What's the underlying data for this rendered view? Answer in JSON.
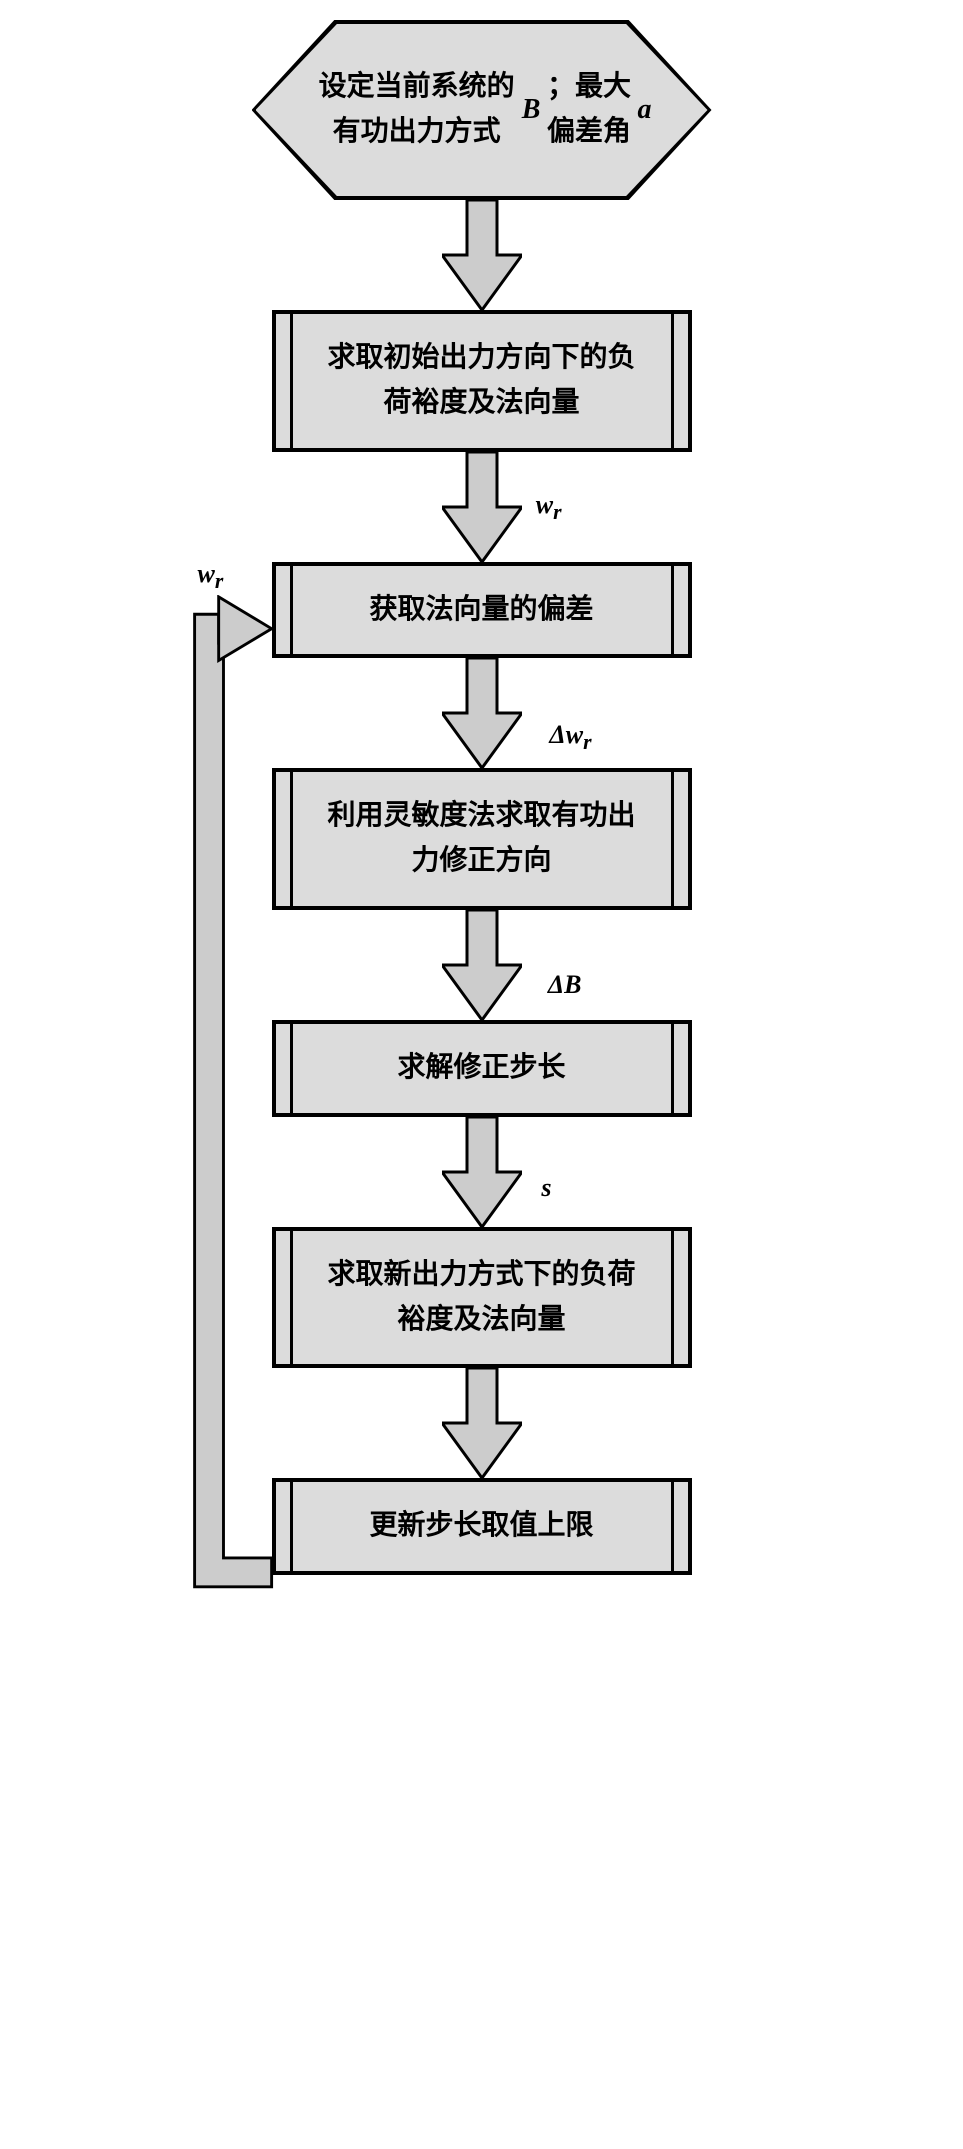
{
  "diagram": {
    "type": "flowchart",
    "background_color": "#ffffff",
    "node_fill": "#dcdcdc",
    "node_border": "#000000",
    "arrow_fill": "#cccccc",
    "arrow_border": "#000000",
    "font_size_pt": 20,
    "font_weight": "bold",
    "font_family": "SimSun",
    "nodes": [
      {
        "id": "n0",
        "shape": "hexagon",
        "text_html": "设定当前系统的有功出力方式<span class='it'>B</span>；最大偏差角<span class='it'>a</span>"
      },
      {
        "id": "n1",
        "shape": "predefined-process",
        "text": "求取初始出力方向下的负荷裕度及法向量"
      },
      {
        "id": "n2",
        "shape": "predefined-process",
        "text": "获取法向量的偏差"
      },
      {
        "id": "n3",
        "shape": "predefined-process",
        "text": "利用灵敏度法求取有功出力修正方向"
      },
      {
        "id": "n4",
        "shape": "predefined-process",
        "text": "求解修正步长"
      },
      {
        "id": "n5",
        "shape": "predefined-process",
        "text": "求取新出力方式下的负荷裕度及法向量"
      },
      {
        "id": "n6",
        "shape": "predefined-process",
        "text": "更新步长取值上限"
      }
    ],
    "edges": [
      {
        "from": "n0",
        "to": "n1",
        "label": ""
      },
      {
        "from": "n1",
        "to": "n2",
        "label_html": "<span class='it'>w<sub>r</sub></span>"
      },
      {
        "from": "n2",
        "to": "n3",
        "label_html": "Δ<span class='it'>w<sub>r</sub></span>"
      },
      {
        "from": "n3",
        "to": "n4",
        "label_html": "Δ<span class='it'>B</span>"
      },
      {
        "from": "n4",
        "to": "n5",
        "label_html": "<span class='it'>s</span>"
      },
      {
        "from": "n5",
        "to": "n6",
        "label": ""
      },
      {
        "from": "n6",
        "to": "n2",
        "label_html": "<span class='it'>w<sub>r</sub></span>",
        "feedback": true
      }
    ]
  }
}
